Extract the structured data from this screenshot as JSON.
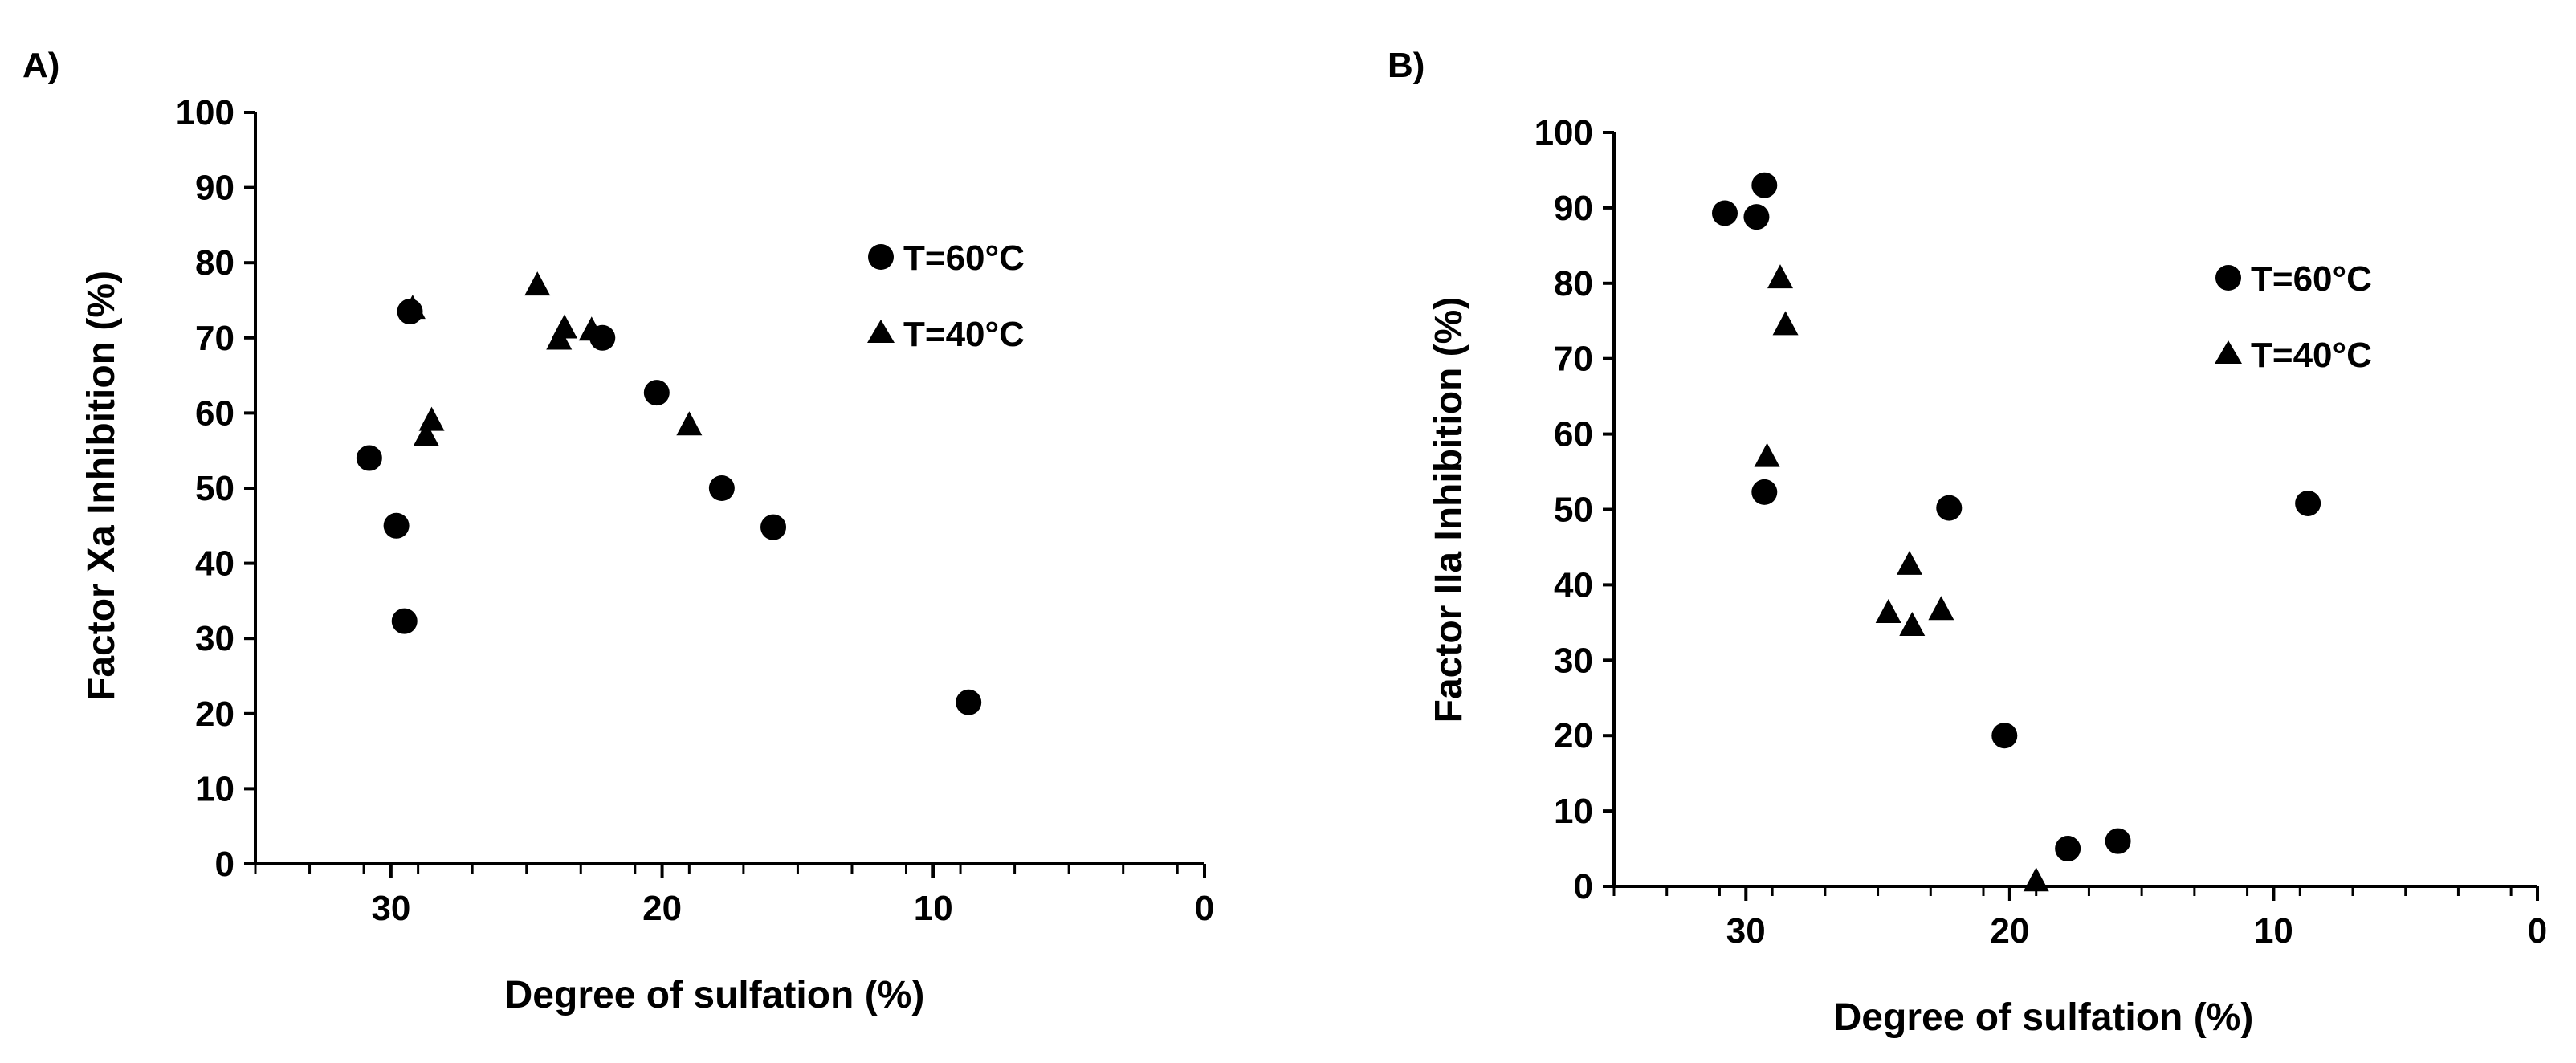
{
  "chart_data": [
    {
      "panel_label": "A)",
      "type": "scatter",
      "title": "",
      "xlabel": "Degree of sulfation (%)",
      "ylabel": "Factor Xa Inhibition (%)",
      "xlim": [
        35,
        0
      ],
      "ylim": [
        0,
        100
      ],
      "x_ticks": [
        30,
        20,
        10,
        0
      ],
      "y_ticks": [
        0,
        10,
        20,
        30,
        40,
        50,
        60,
        70,
        80,
        90,
        100
      ],
      "x_reversed": true,
      "grid": false,
      "legend_position": "top-right",
      "series": [
        {
          "name": "T=60°C",
          "marker": "circle",
          "points": [
            {
              "x": 30.8,
              "y": 54
            },
            {
              "x": 29.8,
              "y": 45
            },
            {
              "x": 29.5,
              "y": 32.3
            },
            {
              "x": 29.3,
              "y": 73.5
            },
            {
              "x": 22.2,
              "y": 70
            },
            {
              "x": 20.2,
              "y": 62.7
            },
            {
              "x": 17.8,
              "y": 50
            },
            {
              "x": 15.9,
              "y": 44.8
            },
            {
              "x": 8.7,
              "y": 21.5
            }
          ]
        },
        {
          "name": "T=40°C",
          "marker": "triangle",
          "points": [
            {
              "x": 29.2,
              "y": 73.7
            },
            {
              "x": 28.7,
              "y": 56.8
            },
            {
              "x": 28.5,
              "y": 58.8
            },
            {
              "x": 24.6,
              "y": 76.8
            },
            {
              "x": 23.8,
              "y": 69.6
            },
            {
              "x": 23.6,
              "y": 71.1
            },
            {
              "x": 22.6,
              "y": 70.8
            },
            {
              "x": 19.0,
              "y": 58.2
            }
          ]
        }
      ]
    },
    {
      "panel_label": "B)",
      "type": "scatter",
      "title": "",
      "xlabel": "Degree of sulfation (%)",
      "ylabel": "Factor IIa Inhibition (%)",
      "xlim": [
        35,
        0
      ],
      "ylim": [
        0,
        100
      ],
      "x_ticks": [
        30,
        20,
        10,
        0
      ],
      "y_ticks": [
        0,
        10,
        20,
        30,
        40,
        50,
        60,
        70,
        80,
        90,
        100
      ],
      "x_reversed": true,
      "grid": false,
      "legend_position": "top-right",
      "series": [
        {
          "name": "T=60°C",
          "marker": "circle",
          "points": [
            {
              "x": 30.8,
              "y": 89.3
            },
            {
              "x": 29.6,
              "y": 88.8
            },
            {
              "x": 29.3,
              "y": 93
            },
            {
              "x": 29.3,
              "y": 52.3
            },
            {
              "x": 22.3,
              "y": 50.2
            },
            {
              "x": 20.2,
              "y": 20
            },
            {
              "x": 17.8,
              "y": 5
            },
            {
              "x": 15.9,
              "y": 6
            },
            {
              "x": 8.7,
              "y": 50.8
            }
          ]
        },
        {
          "name": "T=40°C",
          "marker": "triangle",
          "points": [
            {
              "x": 29.2,
              "y": 56.8
            },
            {
              "x": 28.7,
              "y": 80.5
            },
            {
              "x": 28.5,
              "y": 74.3
            },
            {
              "x": 24.6,
              "y": 36.1
            },
            {
              "x": 23.8,
              "y": 42.5
            },
            {
              "x": 23.7,
              "y": 34.4
            },
            {
              "x": 22.6,
              "y": 36.5
            },
            {
              "x": 19.0,
              "y": 0.5
            }
          ]
        }
      ]
    }
  ]
}
